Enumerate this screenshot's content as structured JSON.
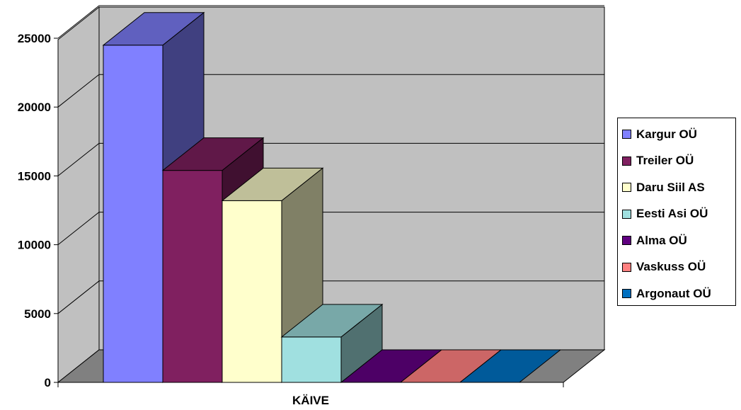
{
  "chart_data": {
    "type": "bar",
    "style": "3d-clustered-column",
    "categories": [
      "KÄIVE"
    ],
    "series": [
      {
        "name": "Kargur OÜ",
        "values": [
          24500
        ],
        "color": "#8080FF"
      },
      {
        "name": "Treiler OÜ",
        "values": [
          15400
        ],
        "color": "#802060"
      },
      {
        "name": "Daru Siil  AS",
        "values": [
          13200
        ],
        "color": "#FFFFCC"
      },
      {
        "name": "Eesti Asi OÜ",
        "values": [
          3300
        ],
        "color": "#A0E0E0"
      },
      {
        "name": "Alma OÜ",
        "values": [
          0
        ],
        "color": "#600080"
      },
      {
        "name": "Vaskuss OÜ",
        "values": [
          0
        ],
        "color": "#FF8080"
      },
      {
        "name": "Argonaut OÜ",
        "values": [
          0
        ],
        "color": "#0070C0"
      }
    ],
    "yticks": [
      "0",
      "5000",
      "10000",
      "15000",
      "20000",
      "25000"
    ],
    "ylim": [
      0,
      25000
    ],
    "xlabel": "",
    "ylabel": "",
    "title": "",
    "grid": true,
    "legend": "right",
    "wall_color": "#C0C0C0",
    "floor_color": "#808080"
  }
}
